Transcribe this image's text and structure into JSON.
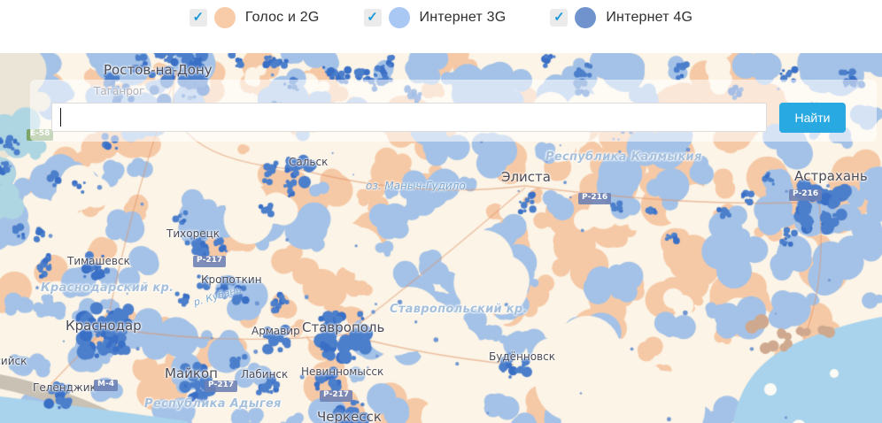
{
  "legend": {
    "items": [
      {
        "label": "Голос и 2G",
        "checked": true,
        "color": "#f8cba9"
      },
      {
        "label": "Интернет 3G",
        "checked": true,
        "color": "#a9c8f3"
      },
      {
        "label": "Интернет 4G",
        "checked": true,
        "color": "#7093ce"
      }
    ]
  },
  "icons": {
    "check": "✓"
  },
  "search": {
    "value": "",
    "button_label": "Найти"
  },
  "colors": {
    "accent_blue": "#29a9e1",
    "coverage_2g": "#f6c9a6",
    "coverage_3g": "#a4c2e7",
    "coverage_4g": "#4c7fcb",
    "map_background": "#fcf4e6",
    "water": "#a9d3ec"
  },
  "map": {
    "cities": [
      {
        "name": "Ростов-на-Дону"
      },
      {
        "name": "Таганрог"
      },
      {
        "name": "Сальск"
      },
      {
        "name": "Элиста"
      },
      {
        "name": "Астрахань"
      },
      {
        "name": "Тихорецк"
      },
      {
        "name": "Тимашевск"
      },
      {
        "name": "Кропоткин"
      },
      {
        "name": "Краснодар"
      },
      {
        "name": "Армавир"
      },
      {
        "name": "Ставрополь"
      },
      {
        "name": "Будённовск"
      },
      {
        "name": "Новороссийск"
      },
      {
        "name": "Геленджик"
      },
      {
        "name": "Майкоп"
      },
      {
        "name": "Лабинск"
      },
      {
        "name": "Невинномысск"
      },
      {
        "name": "Черкесск"
      }
    ],
    "regions": [
      {
        "name": "Республика Калмыкия"
      },
      {
        "name": "Краснодарский кр."
      },
      {
        "name": "Ставропольский кр."
      },
      {
        "name": "Республика Адыгея"
      }
    ],
    "water_labels": [
      {
        "name": "оз. Маныч-Гудило"
      },
      {
        "name": "р. Кубань"
      }
    ],
    "road_badges": [
      {
        "label": "Е-58"
      },
      {
        "label": "Р-217"
      },
      {
        "label": "Р-216"
      },
      {
        "label": "Р-216"
      },
      {
        "label": "М-4"
      },
      {
        "label": "Р-217"
      },
      {
        "label": "Р-217"
      }
    ]
  }
}
